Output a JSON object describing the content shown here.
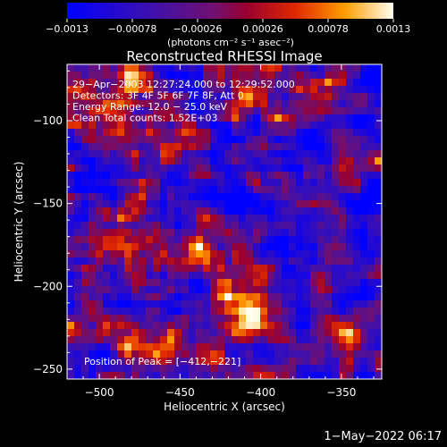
{
  "chart_data": {
    "type": "heatmap",
    "title": "Reconstructed RHESSI Image",
    "xlabel": "Heliocentric X (arcsec)",
    "ylabel": "Heliocentric Y (arcsec)",
    "xlim": [
      -520,
      -325
    ],
    "ylim": [
      -256,
      -66
    ],
    "x_ticks": [
      {
        "value": -500,
        "label": "−500"
      },
      {
        "value": -450,
        "label": "−450"
      },
      {
        "value": -400,
        "label": "−400"
      },
      {
        "value": -350,
        "label": "−350"
      }
    ],
    "y_ticks": [
      {
        "value": -100,
        "label": "−100"
      },
      {
        "value": -150,
        "label": "−150"
      },
      {
        "value": -200,
        "label": "−200"
      },
      {
        "value": -250,
        "label": "−250"
      }
    ],
    "colorbar": {
      "range": [
        -0.0013,
        0.0013
      ],
      "ticks": [
        {
          "value": -0.0013,
          "label": "−0.0013"
        },
        {
          "value": -0.00078,
          "label": "−0.00078"
        },
        {
          "value": -0.00026,
          "label": "−0.00026"
        },
        {
          "value": 0.00026,
          "label": "0.00026"
        },
        {
          "value": 0.00078,
          "label": "0.00078"
        },
        {
          "value": 0.0013,
          "label": "0.0013"
        }
      ],
      "unit_label": "(photons cm⁻² s⁻¹ asec⁻²)"
    },
    "annotations": [
      "29−Apr−2003 12:27:24.000 to 12:29:52.000",
      "Detectors: 3F 4F 5F 6F 7F 8F, Att 0",
      "Energy Range: 12.0 − 25.0 keV",
      "Clean    Total counts: 1.52E+03"
    ],
    "peak_label": "Position of Peak = [−412,−221]",
    "peak": [
      -412,
      -221
    ]
  },
  "footer": "1−May−2022 06:17"
}
